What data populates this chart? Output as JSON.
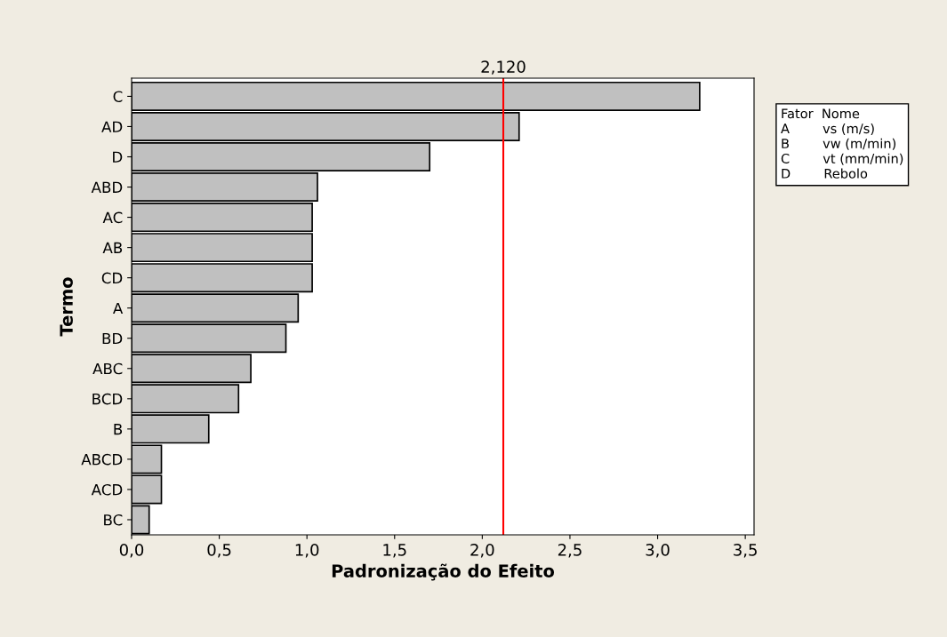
{
  "chart_data": {
    "type": "bar",
    "orientation": "horizontal",
    "xlabel": "Padronização do Efeito",
    "ylabel": "Termo",
    "categories": [
      "C",
      "AD",
      "D",
      "ABD",
      "AC",
      "AB",
      "CD",
      "A",
      "BD",
      "ABC",
      "BCD",
      "B",
      "ABCD",
      "ACD",
      "BC"
    ],
    "values": [
      3.24,
      2.21,
      1.7,
      1.06,
      1.03,
      1.03,
      1.03,
      0.95,
      0.88,
      0.68,
      0.61,
      0.44,
      0.17,
      0.17,
      0.1
    ],
    "color": "#c0c0c0",
    "xlim": [
      0,
      3.55
    ],
    "xticks": [
      {
        "value": 0,
        "label": "0,0"
      },
      {
        "value": 0.5,
        "label": "0,5"
      },
      {
        "value": 1,
        "label": "1,0"
      },
      {
        "value": 1.5,
        "label": "1,5"
      },
      {
        "value": 2,
        "label": "2,0"
      },
      {
        "value": 2.5,
        "label": "2,5"
      },
      {
        "value": 3,
        "label": "3,0"
      },
      {
        "value": 3.5,
        "label": "3,5"
      }
    ],
    "ref_lines": [
      {
        "axis": "x",
        "value": 2.12,
        "label": "2,120",
        "color": "#ff0000"
      }
    ],
    "annotations": [
      "Fator  Nome\nA        vs (m/s)\nB        vw (m/min)\nC        vt (mm/min)\nD        Rebolo"
    ],
    "grid": false,
    "legend": false
  }
}
